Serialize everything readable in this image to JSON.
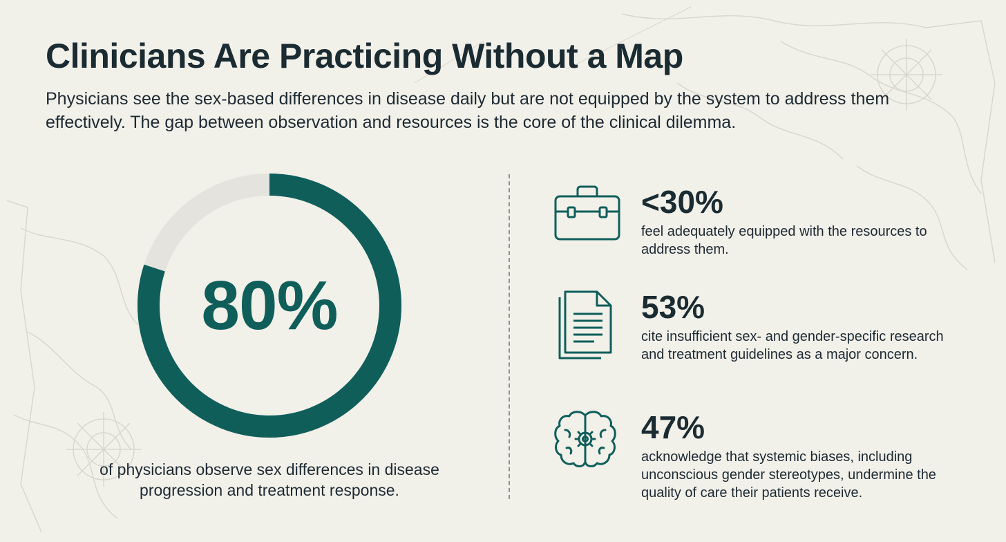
{
  "title": "Clinicians Are Practicing Without a Map",
  "subtitle": "Physicians see the sex-based differences in disease daily but are not equipped by the system to address them effectively. The gap between observation and resources is the core of the clinical dilemma.",
  "main_stat": {
    "value": "80%",
    "fraction": 0.8,
    "caption": "of physicians observe sex differences in disease progression and treatment response.",
    "ring_color": "#0f5e5a",
    "track_color": "#e4e3dd"
  },
  "stats": [
    {
      "icon": "briefcase-icon",
      "value": "<30%",
      "description": "feel adequately equipped with the resources to address them."
    },
    {
      "icon": "document-icon",
      "value": "53%",
      "description": "cite insufficient sex- and gender-specific research and treatment guidelines as a major concern."
    },
    {
      "icon": "brain-gear-icon",
      "value": "47%",
      "description": "acknowledge that systemic biases, including unconscious gender stereotypes, undermine the quality of care their patients receive."
    }
  ],
  "colors": {
    "accent": "#0f5e5a",
    "text": "#1d2a33",
    "background": "#f1f0e9"
  }
}
